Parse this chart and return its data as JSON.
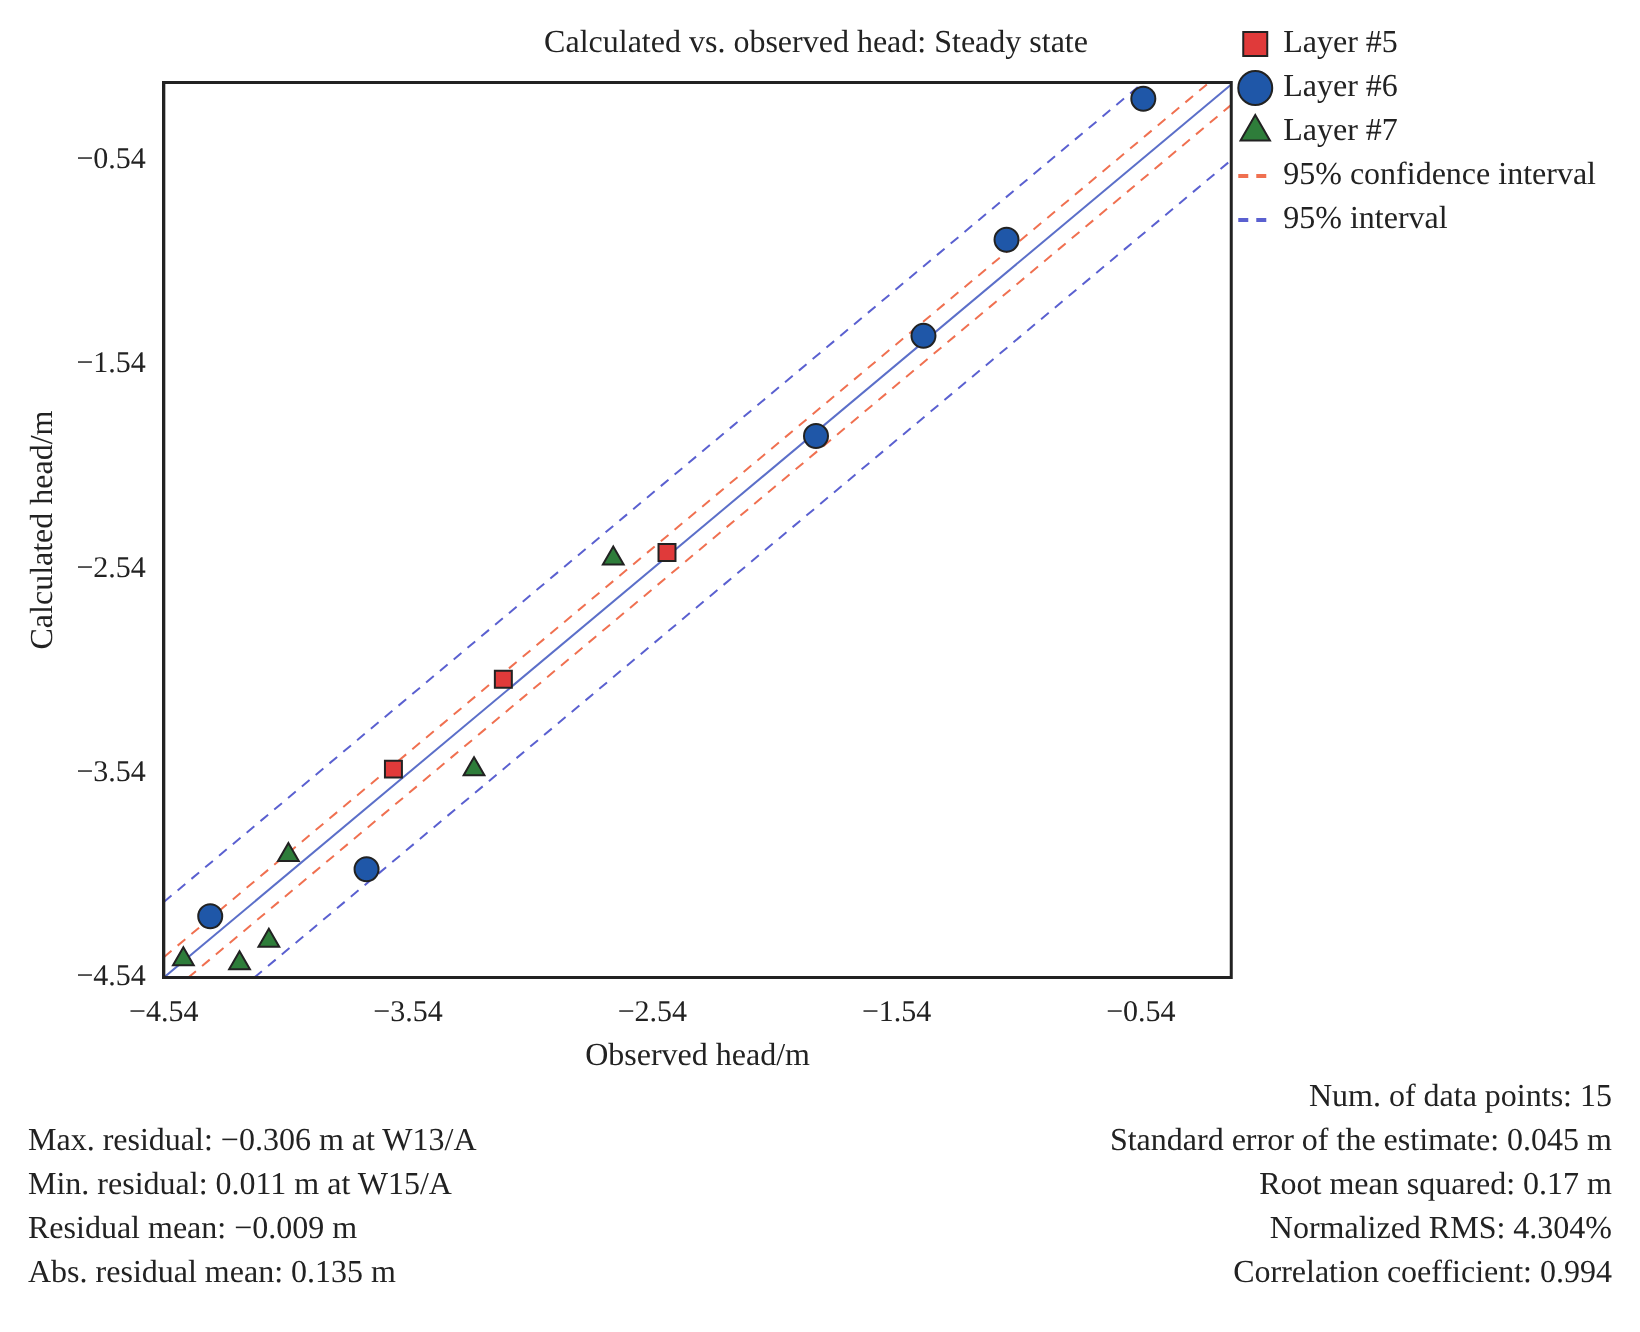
{
  "chart_data": {
    "type": "scatter",
    "title": "Calculated vs. observed head: Steady state",
    "xlabel": "Observed head/m",
    "ylabel": "Calculated head/m",
    "xlim": [
      -4.54,
      -0.17
    ],
    "ylim": [
      -4.54,
      -0.16
    ],
    "xticks": [
      {
        "value": -4.54,
        "label": "−4.54"
      },
      {
        "value": -3.54,
        "label": "−3.54"
      },
      {
        "value": -2.54,
        "label": "−2.54"
      },
      {
        "value": -1.54,
        "label": "−1.54"
      },
      {
        "value": -0.54,
        "label": "−0.54"
      }
    ],
    "yticks": [
      {
        "value": -4.54,
        "label": "−4.54"
      },
      {
        "value": -3.54,
        "label": "−3.54"
      },
      {
        "value": -2.54,
        "label": "−2.54"
      },
      {
        "value": -1.54,
        "label": "−1.54"
      },
      {
        "value": -0.54,
        "label": "−0.54"
      }
    ],
    "grid": false,
    "legend": "top right",
    "series": [
      {
        "name": "Layer #5",
        "type": "scatter",
        "marker": "square",
        "color": "#e03a3a",
        "x": [
          -3.6,
          -3.15,
          -2.48
        ],
        "values": [
          -3.52,
          -3.08,
          -2.46
        ]
      },
      {
        "name": "Layer #6",
        "type": "scatter",
        "marker": "circle",
        "color": "#1f57a8",
        "x": [
          -0.53,
          -1.09,
          -1.43,
          -1.87,
          -3.71,
          -4.35
        ],
        "values": [
          -0.24,
          -0.93,
          -1.4,
          -1.89,
          -4.01,
          -4.24
        ]
      },
      {
        "name": "Layer #7",
        "type": "scatter",
        "marker": "triangle",
        "color": "#2e7d3a",
        "x": [
          -2.7,
          -3.27,
          -4.03,
          -4.11,
          -4.46,
          -4.23
        ],
        "values": [
          -2.49,
          -3.52,
          -3.94,
          -4.36,
          -4.45,
          -4.47
        ]
      },
      {
        "name": "95% confidence interval",
        "type": "line",
        "marker": "none",
        "line_style": "dashed",
        "color": "#f07050",
        "x": [
          -4.54,
          -0.26
        ],
        "values": [
          -4.44,
          -0.16
        ]
      },
      {
        "type": "line",
        "marker": "none",
        "line_style": "dashed",
        "color": "#f07050",
        "x": [
          -4.44,
          -0.17
        ],
        "values": [
          -4.54,
          -0.27
        ]
      },
      {
        "name": "95% interval",
        "type": "line",
        "marker": "none",
        "line_style": "dashed",
        "color": "#5a60d0",
        "x": [
          -4.54,
          -0.53
        ],
        "values": [
          -4.17,
          -0.16
        ]
      },
      {
        "type": "line",
        "marker": "none",
        "line_style": "dashed",
        "color": "#5a60d0",
        "x": [
          -4.17,
          -0.17
        ],
        "values": [
          -4.54,
          -0.54
        ]
      },
      {
        "type": "line",
        "marker": "none",
        "line_style": "solid",
        "color": "#5b6fc9",
        "x": [
          -4.54,
          -0.17
        ],
        "values": [
          -4.54,
          -0.17
        ]
      }
    ],
    "annotations": [
      "Num. of data points: 15",
      "Max. residual: −0.306 m at W13/A",
      "Standard error of the estimate: 0.045 m",
      "Min. residual: 0.011 m at W15/A",
      "Root mean squared: 0.17 m",
      "Residual mean: −0.009 m",
      "Normalized RMS: 4.304%",
      "Abs. residual mean: 0.135 m",
      "Correlation coefficient: 0.994"
    ]
  }
}
